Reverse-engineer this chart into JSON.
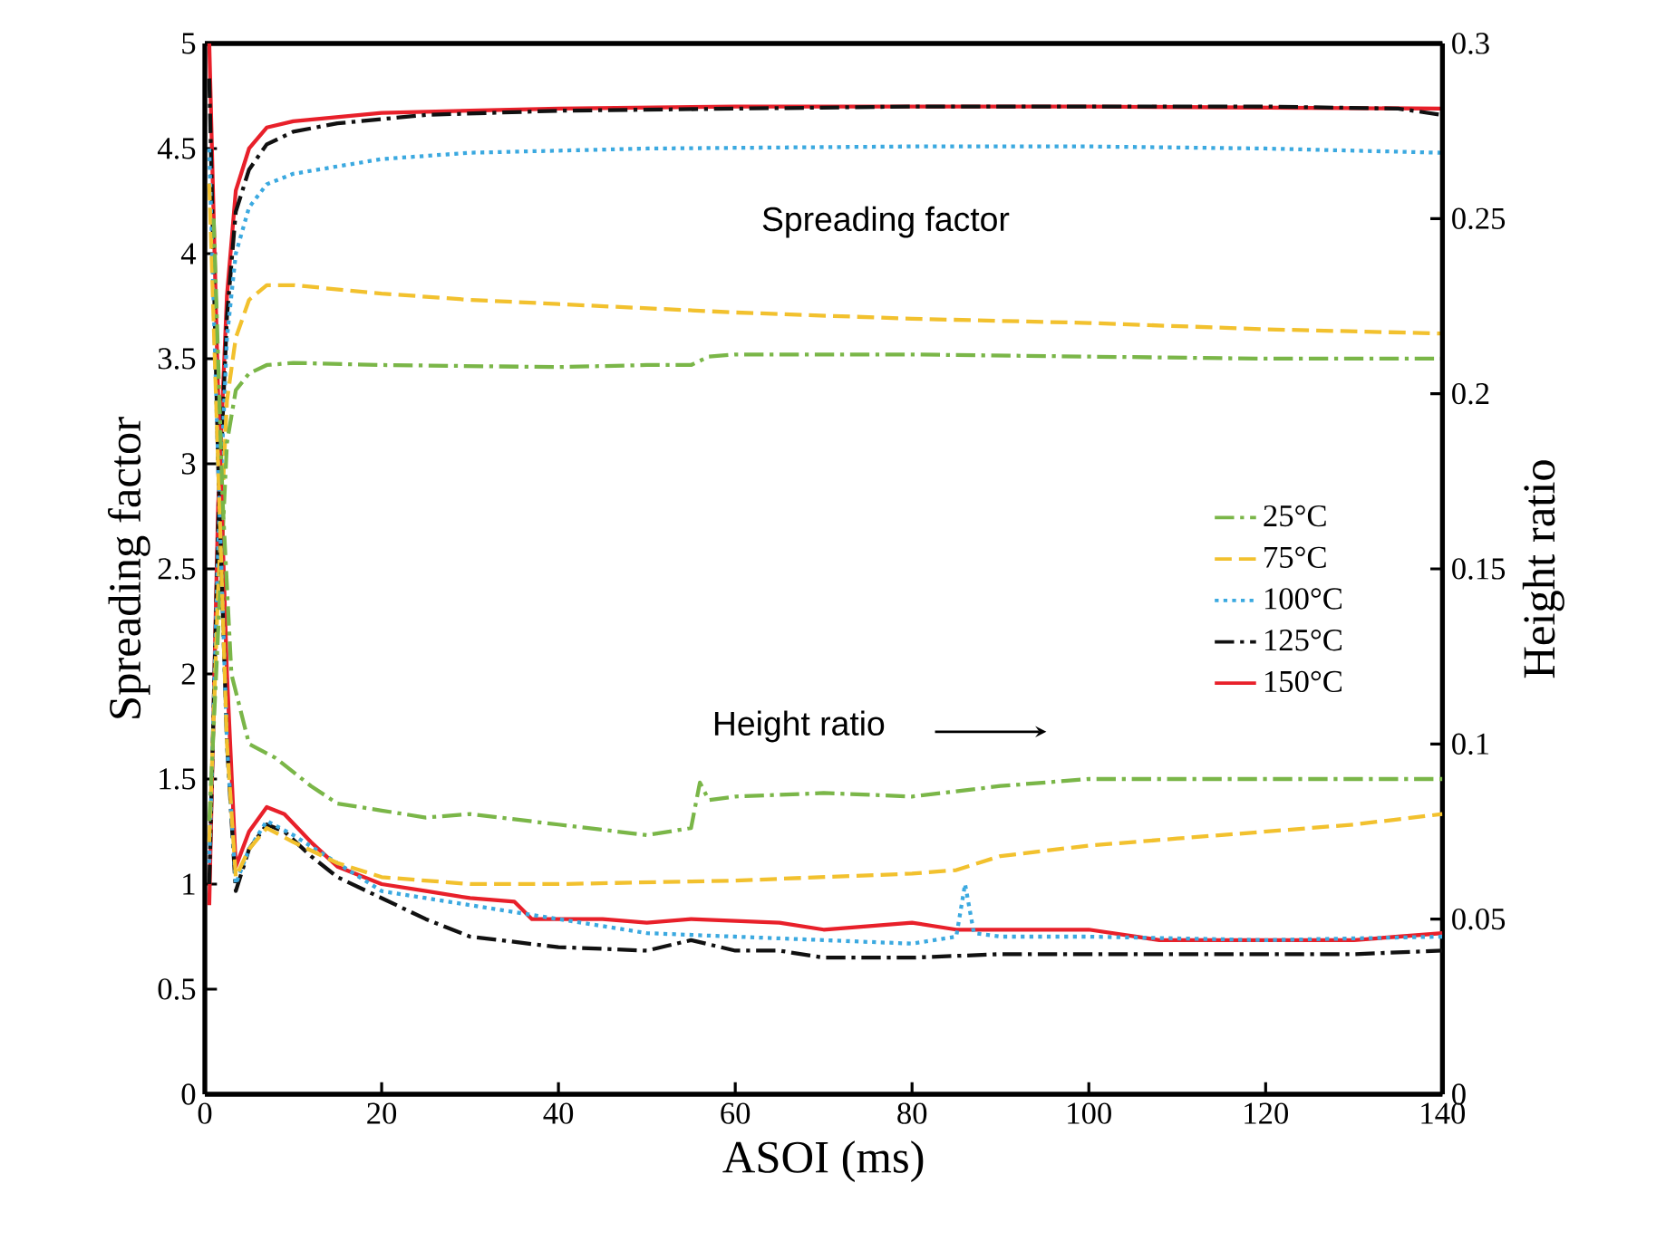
{
  "chart_data": {
    "type": "line",
    "xlabel": "ASOI (ms)",
    "ylabel": "Spreading factor",
    "y2label": "Height ratio",
    "xlim": [
      0,
      140
    ],
    "xticks": [
      0,
      20,
      40,
      60,
      80,
      100,
      120,
      140
    ],
    "ylim": [
      0,
      5
    ],
    "yticks": [
      0,
      0.5,
      1,
      1.5,
      2,
      2.5,
      3,
      3.5,
      4,
      4.5,
      5
    ],
    "y2lim": [
      0,
      0.3
    ],
    "y2ticks": [
      0,
      0.05,
      0.1,
      0.15,
      0.2,
      0.25,
      0.3
    ],
    "grid": false,
    "legend": "right",
    "marker": "none",
    "annotations": [
      "Spreading factor",
      "Height ratio"
    ],
    "series": [
      {
        "name": "25°C",
        "color": "#7ab648",
        "line_style": "dashdot",
        "x": [
          0.5,
          1.5,
          2.5,
          3.5,
          5,
          7,
          10,
          20,
          40,
          50,
          55,
          57,
          60,
          80,
          100,
          120,
          140
        ],
        "values": [
          1.3,
          2.2,
          3.1,
          3.35,
          3.43,
          3.47,
          3.48,
          3.47,
          3.46,
          3.47,
          3.47,
          3.51,
          3.52,
          3.52,
          3.51,
          3.5,
          3.5
        ]
      },
      {
        "name": "75°C",
        "color": "#f2c12e",
        "line_style": "dashed",
        "x": [
          0.5,
          1.5,
          2.5,
          3.5,
          5,
          7,
          10,
          20,
          30,
          40,
          60,
          80,
          100,
          120,
          140
        ],
        "values": [
          1.2,
          2.4,
          3.3,
          3.6,
          3.78,
          3.85,
          3.85,
          3.81,
          3.78,
          3.76,
          3.72,
          3.69,
          3.67,
          3.64,
          3.62
        ]
      },
      {
        "name": "100°C",
        "color": "#3ba9e0",
        "line_style": "dotted",
        "x": [
          0.5,
          1.5,
          2.5,
          3.5,
          5,
          7,
          10,
          20,
          30,
          50,
          80,
          100,
          120,
          140
        ],
        "values": [
          1.1,
          2.6,
          3.6,
          4.0,
          4.22,
          4.33,
          4.38,
          4.45,
          4.48,
          4.5,
          4.51,
          4.51,
          4.5,
          4.48
        ]
      },
      {
        "name": "125°C",
        "color": "#111111",
        "line_style": "dashdot",
        "x": [
          0.5,
          1.5,
          2.5,
          3.5,
          5,
          7,
          10,
          15,
          25,
          40,
          60,
          80,
          100,
          120,
          135,
          140
        ],
        "values": [
          1.0,
          2.7,
          3.7,
          4.2,
          4.4,
          4.52,
          4.58,
          4.62,
          4.66,
          4.68,
          4.69,
          4.7,
          4.7,
          4.7,
          4.69,
          4.66
        ]
      },
      {
        "name": "150°C",
        "color": "#e8202a",
        "line_style": "solid",
        "x": [
          0.5,
          1.5,
          2.5,
          3.5,
          5,
          7,
          10,
          20,
          40,
          60,
          100,
          140
        ],
        "values": [
          0.9,
          2.8,
          3.8,
          4.3,
          4.5,
          4.6,
          4.63,
          4.67,
          4.69,
          4.7,
          4.7,
          4.69
        ]
      },
      {
        "color": "#7ab648",
        "line_style": "dashdot",
        "axis": "y2",
        "x": [
          1,
          2,
          3,
          5,
          8,
          12,
          15,
          20,
          25,
          30,
          40,
          50,
          55,
          56,
          57,
          60,
          70,
          80,
          90,
          100,
          140
        ],
        "values": [
          0.25,
          0.17,
          0.12,
          0.1,
          0.096,
          0.088,
          0.083,
          0.081,
          0.079,
          0.08,
          0.077,
          0.074,
          0.076,
          0.089,
          0.084,
          0.085,
          0.086,
          0.085,
          0.088,
          0.09,
          0.09
        ]
      },
      {
        "color": "#f2c12e",
        "line_style": "dashed",
        "axis": "y2",
        "x": [
          0.5,
          1.5,
          2.5,
          3.5,
          5,
          7,
          10,
          15,
          20,
          30,
          40,
          60,
          80,
          85,
          90,
          100,
          110,
          120,
          130,
          140
        ],
        "values": [
          0.26,
          0.18,
          0.1,
          0.062,
          0.07,
          0.076,
          0.072,
          0.066,
          0.062,
          0.06,
          0.06,
          0.061,
          0.063,
          0.064,
          0.068,
          0.071,
          0.073,
          0.075,
          0.077,
          0.08
        ]
      },
      {
        "color": "#3ba9e0",
        "line_style": "dotted",
        "axis": "y2",
        "x": [
          0.5,
          1.5,
          2.5,
          3.5,
          5,
          7,
          10,
          15,
          20,
          25,
          30,
          40,
          50,
          60,
          70,
          80,
          85,
          86,
          87,
          90,
          100,
          120,
          140
        ],
        "values": [
          0.27,
          0.18,
          0.1,
          0.06,
          0.07,
          0.078,
          0.074,
          0.066,
          0.058,
          0.056,
          0.054,
          0.05,
          0.046,
          0.045,
          0.044,
          0.043,
          0.045,
          0.06,
          0.046,
          0.045,
          0.045,
          0.044,
          0.045
        ]
      },
      {
        "color": "#111111",
        "line_style": "dashdot",
        "axis": "y2",
        "x": [
          0.5,
          1.5,
          2.5,
          3.5,
          5,
          7,
          9,
          12,
          15,
          20,
          25,
          30,
          40,
          50,
          55,
          60,
          65,
          70,
          80,
          90,
          100,
          120,
          130,
          140
        ],
        "values": [
          0.29,
          0.18,
          0.1,
          0.058,
          0.07,
          0.077,
          0.075,
          0.068,
          0.062,
          0.056,
          0.05,
          0.045,
          0.042,
          0.041,
          0.044,
          0.041,
          0.041,
          0.039,
          0.039,
          0.04,
          0.04,
          0.04,
          0.04,
          0.041
        ]
      },
      {
        "color": "#e8202a",
        "line_style": "solid",
        "axis": "y2",
        "x": [
          0.5,
          1.5,
          2.5,
          3.5,
          5,
          7,
          9,
          12,
          15,
          20,
          25,
          30,
          35,
          37,
          45,
          50,
          55,
          65,
          70,
          80,
          85,
          100,
          108,
          130,
          135,
          140
        ],
        "values": [
          0.3,
          0.2,
          0.12,
          0.065,
          0.075,
          0.082,
          0.08,
          0.072,
          0.065,
          0.06,
          0.058,
          0.056,
          0.055,
          0.05,
          0.05,
          0.049,
          0.05,
          0.049,
          0.047,
          0.049,
          0.047,
          0.047,
          0.044,
          0.044,
          0.045,
          0.046
        ]
      }
    ]
  }
}
